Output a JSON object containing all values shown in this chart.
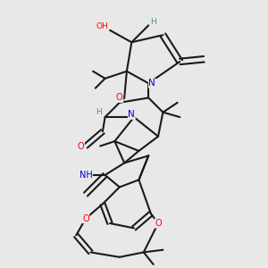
{
  "bg_color": "#e8e8e8",
  "bond_color": "#1a1a1a",
  "bond_width": 1.5,
  "atom_colors": {
    "O": "#ff0000",
    "N": "#0000cc",
    "H": "#4a9090",
    "C": "#1a1a1a"
  },
  "figsize": [
    3.0,
    3.0
  ],
  "dpi": 100,
  "title": ""
}
